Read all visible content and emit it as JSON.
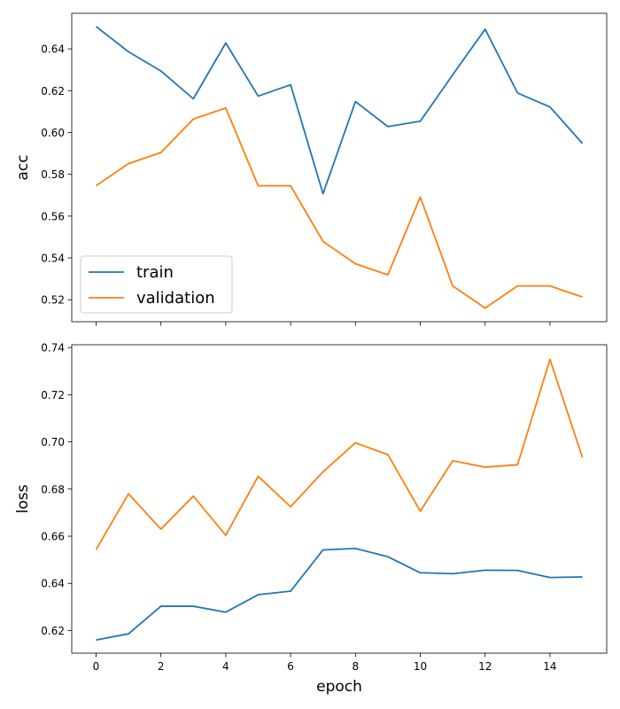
{
  "chart_data": [
    {
      "type": "line",
      "x": [
        0,
        1,
        2,
        3,
        4,
        5,
        6,
        7,
        8,
        9,
        10,
        11,
        12,
        13,
        14,
        15
      ],
      "xlim": [
        -0.75,
        15.75
      ],
      "xticks": [
        0,
        2,
        4,
        6,
        8,
        10,
        12,
        14
      ],
      "ylabel": "acc",
      "xlabel": "",
      "ylim": [
        0.5095,
        0.657
      ],
      "yticks": [
        "0.52",
        "0.54",
        "0.56",
        "0.58",
        "0.60",
        "0.62",
        "0.64"
      ],
      "legend": "lower-left",
      "grid": false,
      "series": [
        {
          "name": "train",
          "color": "#1f77b4",
          "values": [
            0.6507,
            0.6386,
            0.6294,
            0.6161,
            0.6428,
            0.6174,
            0.6228,
            0.5707,
            0.6148,
            0.6028,
            0.6054,
            0.6276,
            0.6494,
            0.6189,
            0.6122,
            0.5948
          ]
        },
        {
          "name": "validation",
          "color": "#ff7f0e",
          "values": [
            0.5745,
            0.5851,
            0.5904,
            0.6064,
            0.6117,
            0.5745,
            0.5745,
            0.5479,
            0.5372,
            0.5319,
            0.5691,
            0.5266,
            0.516,
            0.5266,
            0.5266,
            0.5213
          ]
        }
      ]
    },
    {
      "type": "line",
      "x": [
        0,
        1,
        2,
        3,
        4,
        5,
        6,
        7,
        8,
        9,
        10,
        11,
        12,
        13,
        14,
        15
      ],
      "xlim": [
        -0.75,
        15.75
      ],
      "xticks": [
        0,
        2,
        4,
        6,
        8,
        10,
        12,
        14
      ],
      "ylabel": "loss",
      "xlabel": "epoch",
      "ylim": [
        0.6104,
        0.7412
      ],
      "yticks": [
        "0.62",
        "0.64",
        "0.66",
        "0.68",
        "0.70",
        "0.72",
        "0.74"
      ],
      "grid": false,
      "series": [
        {
          "name": "train",
          "color": "#1f77b4",
          "values": [
            0.616,
            0.6186,
            0.6303,
            0.6303,
            0.6278,
            0.6352,
            0.6367,
            0.6542,
            0.6548,
            0.6513,
            0.6445,
            0.6441,
            0.6456,
            0.6455,
            0.6425,
            0.6427
          ]
        },
        {
          "name": "validation",
          "color": "#ff7f0e",
          "values": [
            0.6543,
            0.678,
            0.663,
            0.677,
            0.6604,
            0.6854,
            0.6725,
            0.6873,
            0.6996,
            0.6946,
            0.6706,
            0.692,
            0.6893,
            0.6903,
            0.735,
            0.6934
          ]
        }
      ]
    }
  ]
}
